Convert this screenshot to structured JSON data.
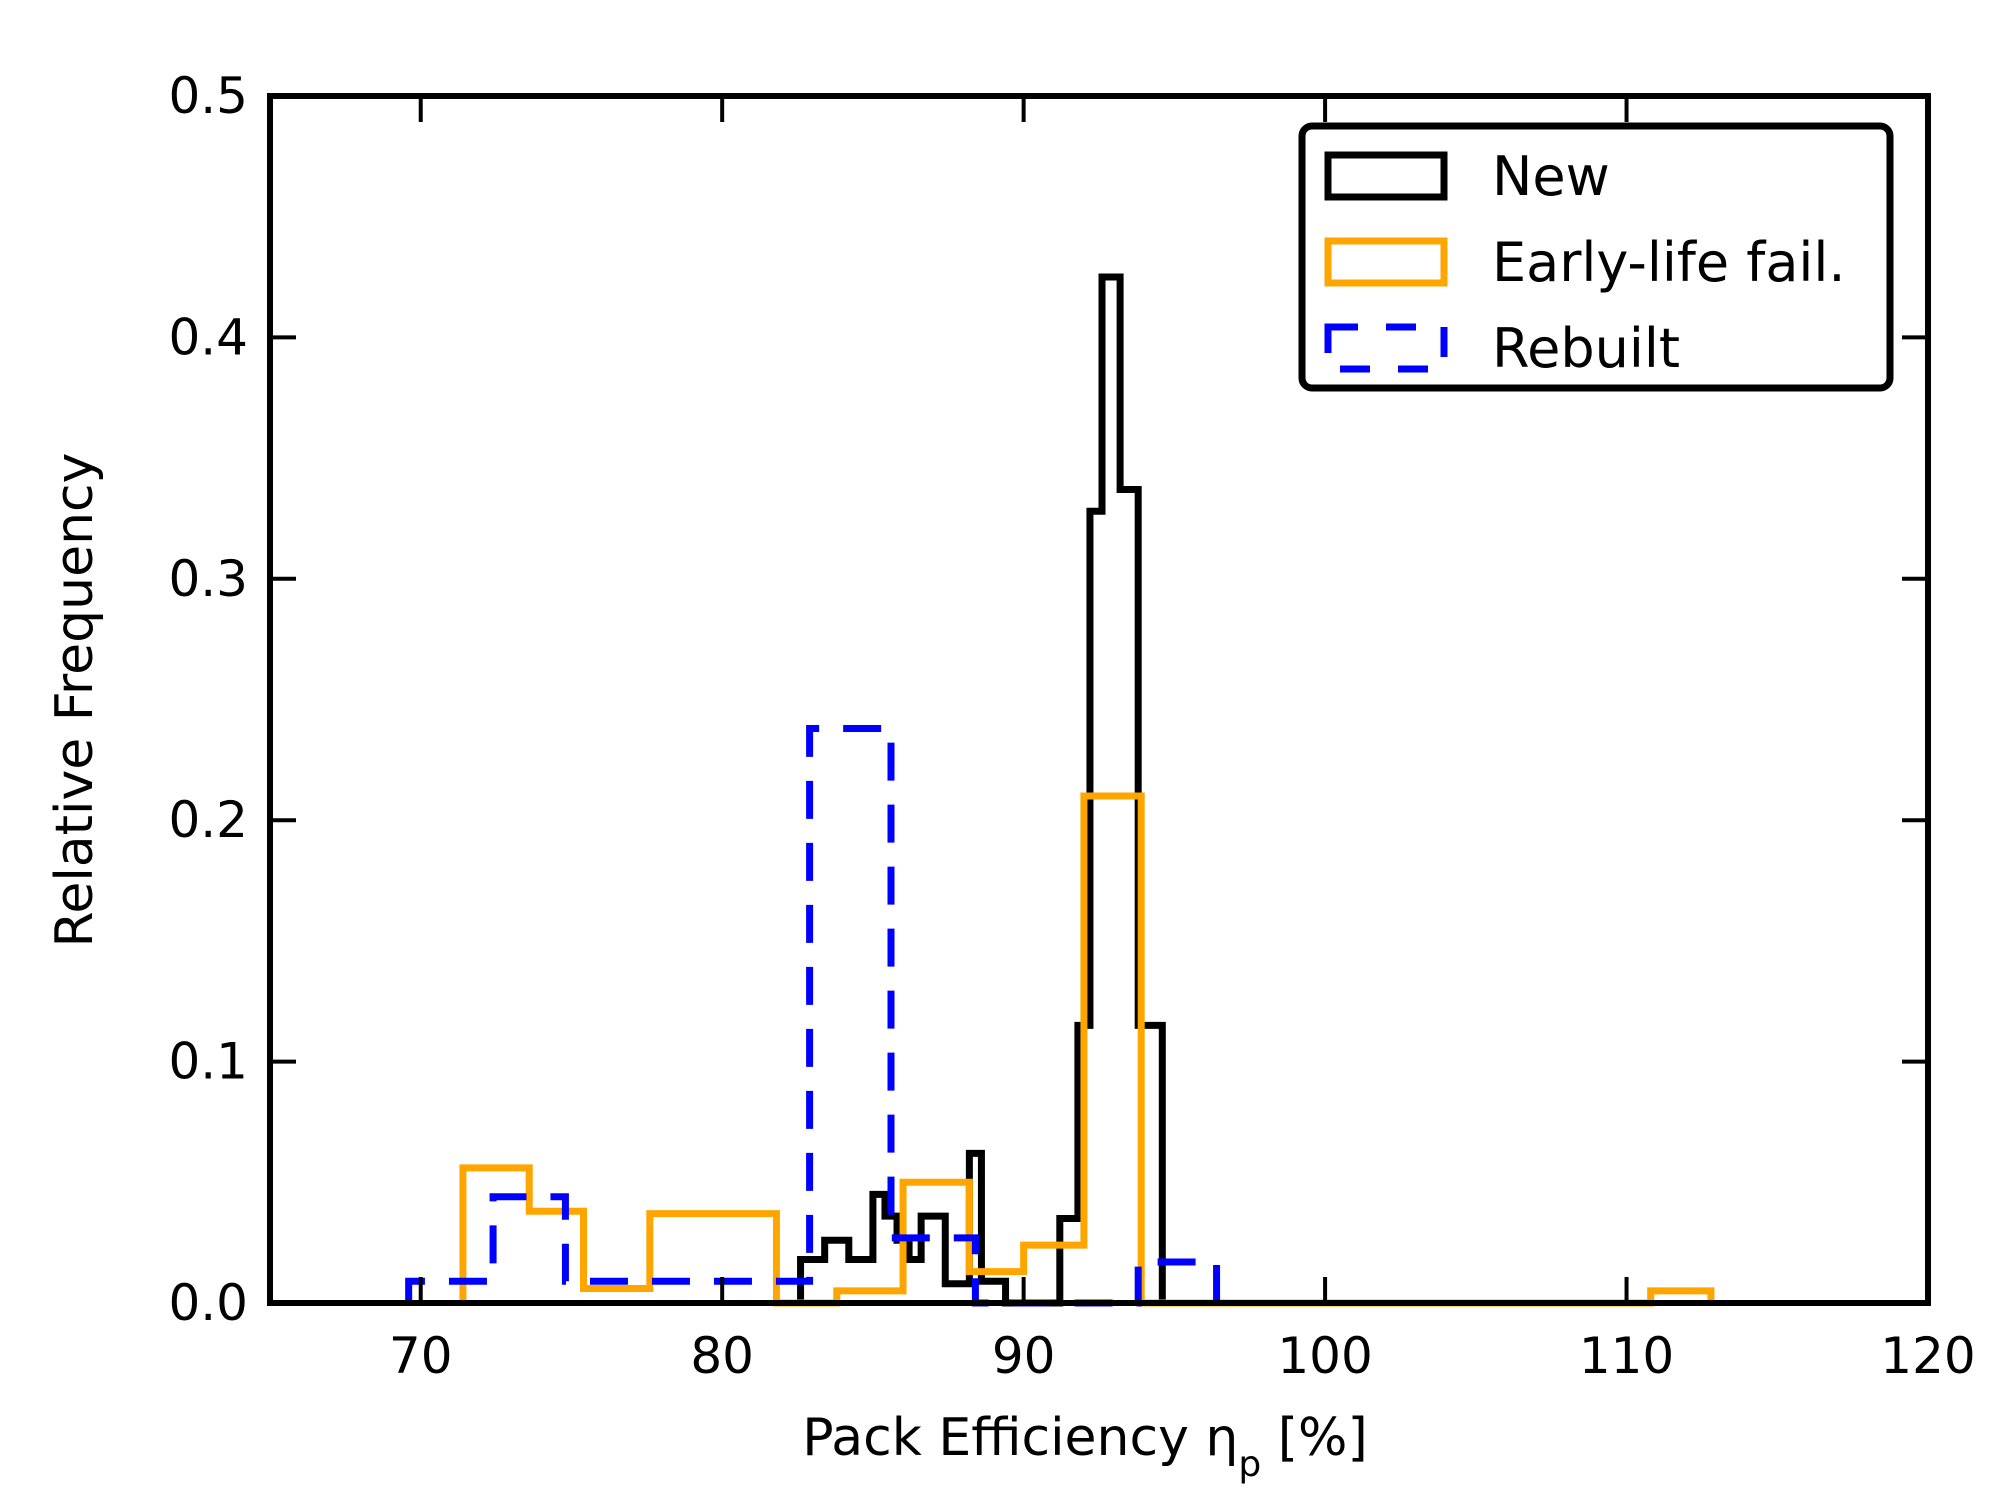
{
  "chart_data": {
    "type": "histogram",
    "xlabel": "Pack Efficiency η",
    "xlabel_subscript": "p",
    "xlabel_suffix": " [%]",
    "ylabel": "Relative Frequency",
    "xlim": [
      65,
      120
    ],
    "ylim": [
      0,
      0.5
    ],
    "xticks": [
      70,
      80,
      90,
      100,
      110,
      120
    ],
    "yticks": [
      0.0,
      0.1,
      0.2,
      0.3,
      0.4,
      0.5
    ],
    "xtick_labels": [
      "70",
      "80",
      "90",
      "100",
      "110",
      "120"
    ],
    "ytick_labels": [
      "0.0",
      "0.1",
      "0.2",
      "0.3",
      "0.4",
      "0.5"
    ],
    "legend_position": "top-right",
    "series": [
      {
        "name": "New",
        "color": "#000000",
        "dash": "solid",
        "edges": [
          82.6,
          83.0,
          83.4,
          84.2,
          85.0,
          85.4,
          85.8,
          86.2,
          86.6,
          87.4,
          88.2,
          88.6,
          89.4,
          91.2,
          91.8,
          92.2,
          92.6,
          93.2,
          93.8,
          94.6
        ],
        "values": [
          0.018,
          0.018,
          0.026,
          0.018,
          0.045,
          0.036,
          0.026,
          0.018,
          0.036,
          0.008,
          0.062,
          0.009,
          0.0,
          0.035,
          0.115,
          0.328,
          0.425,
          0.337,
          0.115
        ]
      },
      {
        "name": "Early-life fail.",
        "color": "#ffa500",
        "dash": "solid",
        "edges": [
          71.4,
          73.6,
          75.4,
          77.6,
          81.8,
          83.8,
          86.0,
          88.2,
          90.0,
          92.0,
          93.9,
          110.8,
          112.8
        ],
        "values": [
          0.056,
          0.038,
          0.006,
          0.037,
          0.0,
          0.005,
          0.05,
          0.013,
          0.024,
          0.21,
          0.0,
          0.005
        ]
      },
      {
        "name": "Rebuilt",
        "color": "#0000ff",
        "dash": "dashed",
        "edges": [
          69.6,
          72.4,
          74.8,
          82.9,
          85.6,
          88.4,
          93.8,
          96.4
        ],
        "values": [
          0.009,
          0.044,
          0.009,
          0.238,
          0.027,
          0.0,
          0.017
        ]
      }
    ]
  }
}
